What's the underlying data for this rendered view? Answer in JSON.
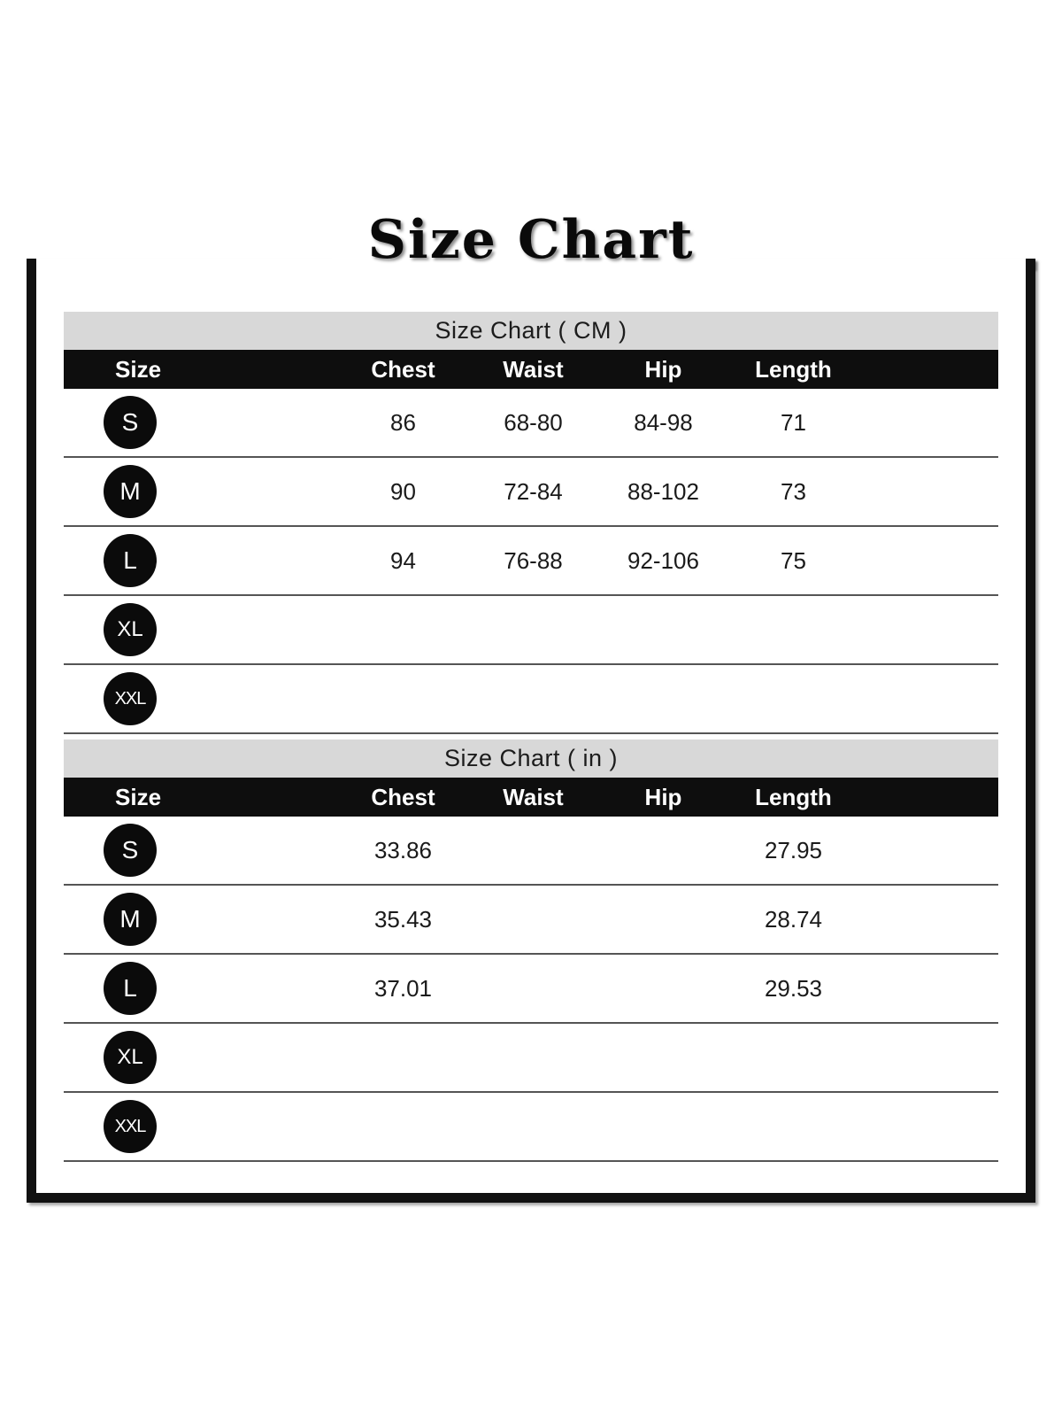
{
  "page_title": "Size Chart",
  "tables": [
    {
      "caption": "Size Chart ( CM )",
      "columns": [
        "Size",
        "Chest",
        "Waist",
        "Hip",
        "Length"
      ],
      "rows": [
        {
          "size": "S",
          "chest": "86",
          "waist": "68-80",
          "hip": "84-98",
          "length": "71"
        },
        {
          "size": "M",
          "chest": "90",
          "waist": "72-84",
          "hip": "88-102",
          "length": "73"
        },
        {
          "size": "L",
          "chest": "94",
          "waist": "76-88",
          "hip": "92-106",
          "length": "75"
        },
        {
          "size": "XL",
          "chest": "",
          "waist": "",
          "hip": "",
          "length": ""
        },
        {
          "size": "XXL",
          "chest": "",
          "waist": "",
          "hip": "",
          "length": ""
        }
      ]
    },
    {
      "caption": "Size Chart ( in )",
      "columns": [
        "Size",
        "Chest",
        "Waist",
        "Hip",
        "Length"
      ],
      "rows": [
        {
          "size": "S",
          "chest": "33.86",
          "waist": "",
          "hip": "",
          "length": "27.95"
        },
        {
          "size": "M",
          "chest": "35.43",
          "waist": "",
          "hip": "",
          "length": "28.74"
        },
        {
          "size": "L",
          "chest": "37.01",
          "waist": "",
          "hip": "",
          "length": "29.53"
        },
        {
          "size": "XL",
          "chest": "",
          "waist": "",
          "hip": "",
          "length": ""
        },
        {
          "size": "XXL",
          "chest": "",
          "waist": "",
          "hip": "",
          "length": ""
        }
      ]
    }
  ],
  "chart_data": [
    {
      "type": "table",
      "title": "Size Chart ( CM )",
      "columns": [
        "Size",
        "Chest",
        "Waist",
        "Hip",
        "Length"
      ],
      "rows": [
        [
          "S",
          "86",
          "68-80",
          "84-98",
          "71"
        ],
        [
          "M",
          "90",
          "72-84",
          "88-102",
          "73"
        ],
        [
          "L",
          "94",
          "76-88",
          "92-106",
          "75"
        ],
        [
          "XL",
          "",
          "",
          "",
          ""
        ],
        [
          "XXL",
          "",
          "",
          "",
          ""
        ]
      ]
    },
    {
      "type": "table",
      "title": "Size Chart ( in )",
      "columns": [
        "Size",
        "Chest",
        "Waist",
        "Hip",
        "Length"
      ],
      "rows": [
        [
          "S",
          "33.86",
          "",
          "",
          "27.95"
        ],
        [
          "M",
          "35.43",
          "",
          "",
          "28.74"
        ],
        [
          "L",
          "37.01",
          "",
          "",
          "29.53"
        ],
        [
          "XL",
          "",
          "",
          "",
          ""
        ],
        [
          "XXL",
          "",
          "",
          "",
          ""
        ]
      ]
    }
  ],
  "colors": {
    "frame_border": "#111111",
    "header_band": "#d8d8d8",
    "header_black": "#0e0e0e",
    "badge_black": "#0b0b0b",
    "row_divider": "#555555"
  }
}
